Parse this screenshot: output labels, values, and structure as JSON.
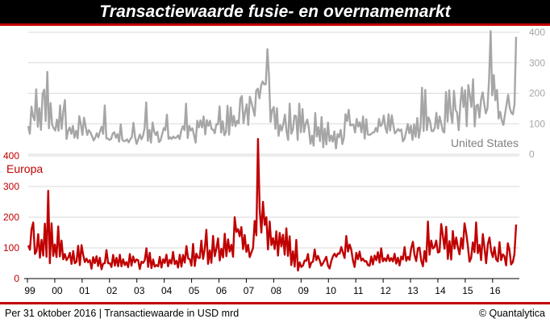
{
  "title": "Transactiewaarde fusie- en overnamemarkt",
  "footer": {
    "left": "Per 31 oktober 2016  |  Transactiewaarde in USD mrd",
    "right": "© Quantalytica"
  },
  "colors": {
    "us": "#a6a6a6",
    "eu": "#c00000",
    "grid": "#d9d9d9",
    "accent": "#c00000"
  },
  "chart_data": [
    {
      "type": "line",
      "series": [
        {
          "name": "United States",
          "values": [
            92,
            67,
            156,
            125,
            111,
            213,
            90,
            151,
            80,
            198,
            212,
            109,
            270,
            85,
            168,
            96,
            85,
            78,
            114,
            77,
            160,
            83,
            140,
            178,
            50,
            77,
            88,
            67,
            93,
            54,
            77,
            52,
            125,
            100,
            63,
            120,
            91,
            63,
            79,
            72,
            59,
            45,
            54,
            69,
            55,
            75,
            90,
            67,
            160,
            52,
            51,
            47,
            50,
            68,
            72,
            54,
            66,
            41,
            98,
            47,
            43,
            44,
            49,
            39,
            49,
            56,
            103,
            56,
            34,
            49,
            65,
            49,
            61,
            86,
            170,
            44,
            80,
            38,
            104,
            74,
            63,
            74,
            40,
            45,
            66,
            86,
            79,
            130,
            50,
            56,
            50,
            58,
            53,
            55,
            62,
            50,
            78,
            92,
            79,
            166,
            53,
            93,
            78,
            85,
            63,
            38,
            110,
            88,
            111,
            88,
            124,
            65,
            112,
            93,
            110,
            82,
            81,
            69,
            99,
            98,
            157,
            71,
            108,
            62,
            72,
            159,
            64,
            153,
            94,
            126,
            92,
            110,
            101,
            181,
            191,
            102,
            138,
            164,
            96,
            189,
            169,
            149,
            126,
            209,
            215,
            183,
            224,
            239,
            229,
            230,
            345,
            260,
            106,
            145,
            155,
            83,
            151,
            60,
            96,
            78,
            99,
            130,
            75,
            47,
            166,
            67,
            81,
            127,
            125,
            47,
            166,
            72,
            148,
            73,
            100,
            114,
            85,
            34,
            61,
            28,
            135,
            58,
            89,
            43,
            122,
            23,
            84,
            32,
            104,
            43,
            61,
            41,
            75,
            19,
            66,
            56,
            80,
            33,
            55,
            131,
            109,
            146,
            94,
            97,
            97,
            71,
            116,
            91,
            105,
            72,
            124,
            51,
            115,
            65,
            63,
            66,
            71,
            72,
            86,
            74,
            116,
            92,
            99,
            127,
            87,
            70,
            131,
            78,
            128,
            94,
            68,
            75,
            83,
            76,
            81,
            42,
            50,
            74,
            99,
            69,
            94,
            47,
            98,
            57,
            119,
            54,
            89,
            218,
            76,
            211,
            79,
            121,
            109,
            76,
            76,
            87,
            136,
            84,
            124,
            101,
            76,
            71,
            204,
            107,
            210,
            137,
            102,
            208,
            146,
            136,
            79,
            162,
            219,
            155,
            210,
            92,
            227,
            192,
            155,
            246,
            91,
            159,
            163,
            120,
            180,
            203,
            164,
            134,
            150,
            243,
            404,
            193,
            260,
            177,
            211,
            117,
            139,
            111,
            96,
            131,
            162,
            195,
            151,
            136,
            131,
            163,
            385
          ]
        }
      ],
      "ylim": [
        -12,
        410
      ],
      "y_ticks": [
        "0",
        "100",
        "200",
        "300",
        "400"
      ]
    },
    {
      "type": "line",
      "series": [
        {
          "name": "Europa",
          "values": [
            108,
            94,
            161,
            183,
            80,
            90,
            145,
            68,
            126,
            75,
            179,
            71,
            286,
            50,
            180,
            74,
            111,
            70,
            170,
            72,
            124,
            63,
            80,
            60,
            69,
            84,
            48,
            90,
            50,
            55,
            107,
            44,
            109,
            78,
            54,
            65,
            53,
            60,
            32,
            70,
            50,
            73,
            41,
            68,
            30,
            49,
            50,
            93,
            50,
            50,
            38,
            77,
            42,
            68,
            40,
            78,
            40,
            63,
            44,
            54,
            37,
            80,
            42,
            72,
            53,
            62,
            60,
            31,
            55,
            51,
            60,
            99,
            38,
            84,
            34,
            62,
            39,
            44,
            40,
            71,
            36,
            63,
            51,
            78,
            40,
            61,
            49,
            87,
            47,
            58,
            36,
            78,
            39,
            77,
            52,
            106,
            66,
            63,
            42,
            113,
            41,
            81,
            68,
            67,
            124,
            64,
            96,
            159,
            48,
            92,
            51,
            139,
            73,
            97,
            131,
            59,
            97,
            69,
            146,
            73,
            128,
            88,
            110,
            71,
            200,
            152,
            161,
            138,
            168,
            96,
            142,
            87,
            110,
            70,
            85,
            100,
            188,
            141,
            455,
            225,
            150,
            250,
            175,
            200,
            95,
            186,
            109,
            132,
            96,
            154,
            75,
            149,
            105,
            143,
            78,
            164,
            74,
            138,
            44,
            89,
            39,
            126,
            26,
            53,
            38,
            43,
            59,
            58,
            80,
            36,
            52,
            55,
            95,
            60,
            74,
            60,
            42,
            50,
            60,
            71,
            42,
            33,
            57,
            73,
            81,
            71,
            82,
            81,
            103,
            84,
            67,
            139,
            88,
            111,
            94,
            60,
            38,
            84,
            63,
            88,
            59,
            65,
            56,
            57,
            44,
            42,
            72,
            46,
            75,
            60,
            86,
            52,
            99,
            56,
            66,
            57,
            77,
            57,
            67,
            56,
            81,
            49,
            68,
            43,
            72,
            62,
            103,
            58,
            71,
            61,
            99,
            120,
            77,
            57,
            99,
            101,
            59,
            40,
            90,
            55,
            186,
            78,
            124,
            98,
            103,
            124,
            85,
            87,
            178,
            141,
            97,
            169,
            64,
            122,
            62,
            155,
            98,
            134,
            103,
            79,
            132,
            97,
            180,
            148,
            107,
            55,
            67,
            118,
            86,
            183,
            83,
            110,
            60,
            145,
            100,
            50,
            112,
            134,
            90,
            70,
            102,
            63,
            56,
            119,
            60,
            79,
            73,
            43,
            115,
            94,
            46,
            54,
            80,
            176
          ]
        }
      ],
      "ylim": [
        0,
        455
      ],
      "y_ticks": [
        "0",
        "100",
        "200",
        "300",
        "400"
      ],
      "x_ticks": [
        "99",
        "00",
        "01",
        "02",
        "03",
        "04",
        "05",
        "06",
        "07",
        "08",
        "09",
        "10",
        "11",
        "12",
        "13",
        "14",
        "15",
        "16"
      ]
    }
  ]
}
